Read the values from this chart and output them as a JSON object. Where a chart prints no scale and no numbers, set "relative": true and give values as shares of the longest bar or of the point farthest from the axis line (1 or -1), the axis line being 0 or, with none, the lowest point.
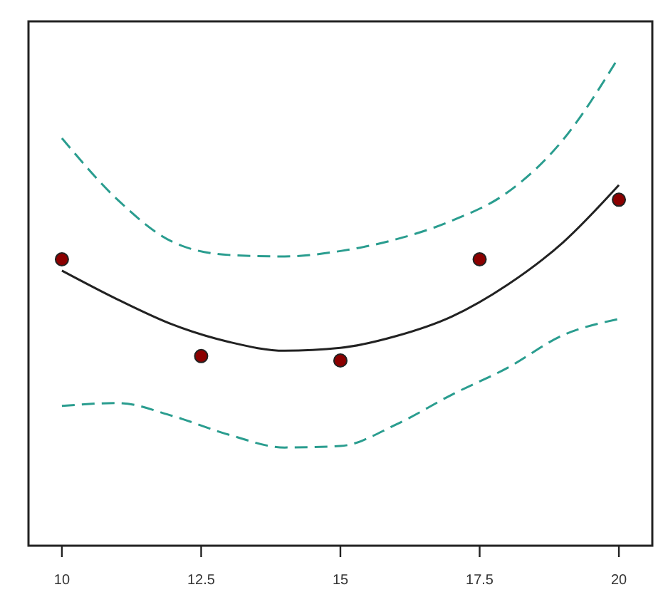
{
  "chart_data": {
    "type": "scatter",
    "relative": true,
    "xlim": [
      9.4,
      20.6
    ],
    "xticks": [
      10,
      12.5,
      15,
      17.5,
      20
    ],
    "marker": "circle",
    "series": [
      {
        "type": "line",
        "color": "#2a9d8f",
        "line_style": "dashed",
        "marker": "none",
        "x": [
          10,
          11,
          12,
          13,
          14,
          15,
          16,
          17,
          18,
          19,
          20
        ],
        "values": [
          0.834,
          0.708,
          0.621,
          0.595,
          0.592,
          0.603,
          0.627,
          0.665,
          0.723,
          0.831,
          1
        ]
      },
      {
        "type": "line",
        "color": "#2a9d8f",
        "line_style": "dashed",
        "marker": "none",
        "x": [
          10,
          11,
          12,
          13,
          14,
          15,
          16,
          17,
          18,
          19,
          20
        ],
        "values": [
          0.286,
          0.292,
          0.265,
          0.227,
          0.201,
          0.204,
          0.248,
          0.309,
          0.364,
          0.431,
          0.464
        ]
      },
      {
        "type": "line",
        "color": "#222222",
        "line_style": "solid",
        "marker": "none",
        "x": [
          10,
          11,
          12,
          13,
          14,
          15,
          16,
          17,
          18,
          19,
          20
        ],
        "values": [
          0.563,
          0.504,
          0.452,
          0.417,
          0.399,
          0.405,
          0.429,
          0.469,
          0.534,
          0.621,
          0.738
        ]
      },
      {
        "color": "#8b0000",
        "x": [
          10,
          12.5,
          15,
          17.5,
          20
        ],
        "values": [
          0.586,
          0.388,
          0.379,
          0.586,
          0.708
        ]
      }
    ]
  }
}
